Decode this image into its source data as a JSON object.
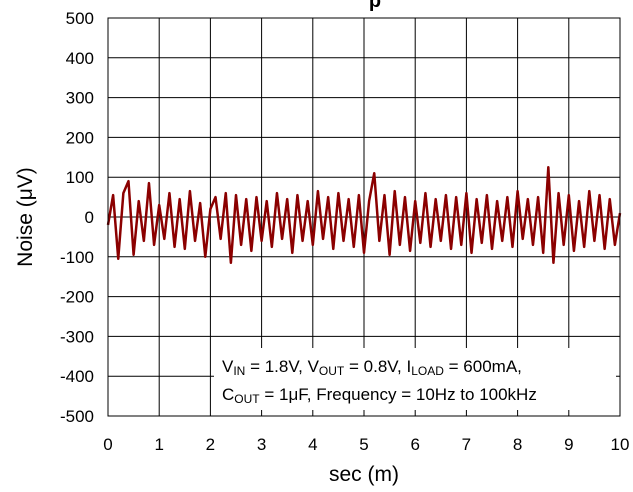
{
  "chart_data": {
    "type": "line",
    "title_fragment": "p",
    "xlabel": "sec (m)",
    "ylabel": "Noise (μV)",
    "xlim": [
      0,
      10
    ],
    "ylim": [
      -500,
      500
    ],
    "x_ticks": [
      "0",
      "1",
      "2",
      "3",
      "4",
      "5",
      "6",
      "7",
      "8",
      "9",
      "10"
    ],
    "y_ticks": [
      "500",
      "400",
      "300",
      "200",
      "100",
      "0",
      "-100",
      "-200",
      "-300",
      "-400",
      "-500"
    ],
    "grid": true,
    "series": [
      {
        "color": "#8b0000",
        "x": [
          0.0,
          0.1,
          0.2,
          0.3,
          0.4,
          0.5,
          0.6,
          0.7,
          0.8,
          0.9,
          1.0,
          1.1,
          1.2,
          1.3,
          1.4,
          1.5,
          1.6,
          1.7,
          1.8,
          1.9,
          2.0,
          2.1,
          2.2,
          2.3,
          2.4,
          2.5,
          2.6,
          2.7,
          2.8,
          2.9,
          3.0,
          3.1,
          3.2,
          3.3,
          3.4,
          3.5,
          3.6,
          3.7,
          3.8,
          3.9,
          4.0,
          4.1,
          4.2,
          4.3,
          4.4,
          4.5,
          4.6,
          4.7,
          4.8,
          4.9,
          5.0,
          5.1,
          5.2,
          5.3,
          5.4,
          5.5,
          5.6,
          5.7,
          5.8,
          5.9,
          6.0,
          6.1,
          6.2,
          6.3,
          6.4,
          6.5,
          6.6,
          6.7,
          6.8,
          6.9,
          7.0,
          7.1,
          7.2,
          7.3,
          7.4,
          7.5,
          7.6,
          7.7,
          7.8,
          7.9,
          8.0,
          8.1,
          8.2,
          8.3,
          8.4,
          8.5,
          8.6,
          8.7,
          8.8,
          8.9,
          9.0,
          9.1,
          9.2,
          9.3,
          9.4,
          9.5,
          9.6,
          9.7,
          9.8,
          9.9,
          10.0
        ],
        "values": [
          -20,
          55,
          -105,
          60,
          90,
          -95,
          40,
          -60,
          85,
          -70,
          30,
          -55,
          60,
          -75,
          45,
          -80,
          65,
          -60,
          35,
          -100,
          20,
          50,
          -55,
          60,
          -115,
          55,
          -70,
          45,
          -85,
          50,
          -60,
          40,
          -75,
          60,
          -55,
          45,
          -90,
          55,
          -60,
          40,
          -70,
          65,
          -55,
          50,
          -80,
          60,
          -60,
          45,
          -75,
          55,
          -90,
          40,
          110,
          -60,
          55,
          -95,
          65,
          -70,
          50,
          -85,
          40,
          -65,
          60,
          -75,
          45,
          -60,
          55,
          -80,
          50,
          -70,
          60,
          -90,
          45,
          -65,
          55,
          -80,
          40,
          -60,
          50,
          -75,
          65,
          -55,
          45,
          -70,
          50,
          -90,
          125,
          -115,
          60,
          -70,
          55,
          -85,
          40,
          -75,
          65,
          -60,
          55,
          -80,
          45,
          -70,
          10
        ]
      }
    ],
    "annotation": {
      "line1": [
        {
          "text": "V",
          "sub": false
        },
        {
          "text": "IN",
          "sub": true
        },
        {
          "text": " = 1.8V, V",
          "sub": false
        },
        {
          "text": "OUT",
          "sub": true
        },
        {
          "text": " = 0.8V, I",
          "sub": false
        },
        {
          "text": "LOAD",
          "sub": true
        },
        {
          "text": " = 600mA,",
          "sub": false
        }
      ],
      "line2": [
        {
          "text": "C",
          "sub": false
        },
        {
          "text": "OUT",
          "sub": true
        },
        {
          "text": " = 1μF, Frequency = 10Hz to 100kHz",
          "sub": false
        }
      ]
    }
  }
}
